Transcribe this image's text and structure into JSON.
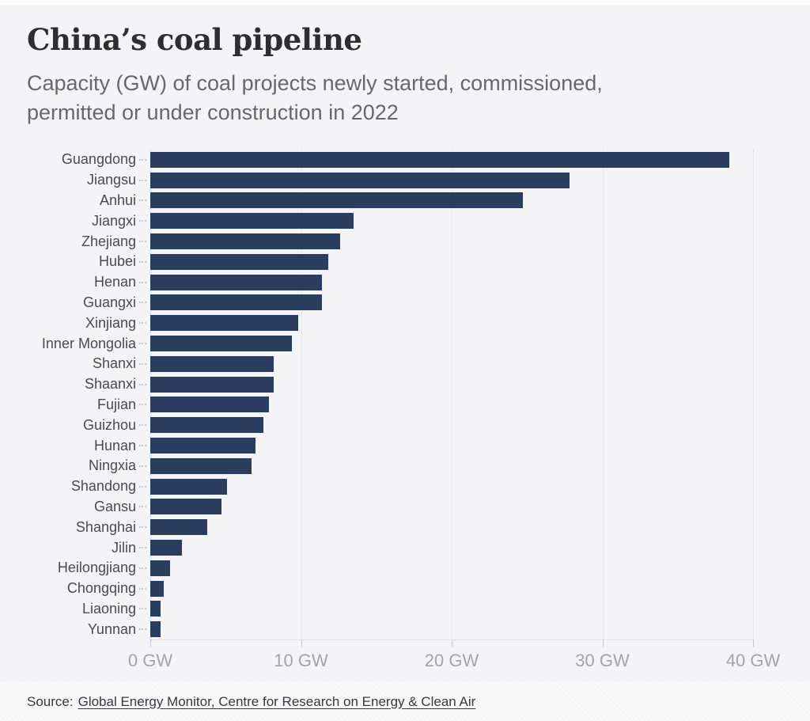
{
  "header": {
    "title": "China’s coal pipeline",
    "subtitle_lines": [
      "Capacity (GW) of coal projects newly started, commissioned,",
      "permitted or under construction in 2022"
    ]
  },
  "chart_data": {
    "type": "bar",
    "orientation": "horizontal",
    "title": "China’s coal pipeline",
    "subtitle": "Capacity (GW) of coal projects newly started, commissioned, permitted or under construction in 2022",
    "unit": "GW",
    "categories": [
      "Guangdong",
      "Jiangsu",
      "Anhui",
      "Jiangxi",
      "Zhejiang",
      "Hubei",
      "Henan",
      "Guangxi",
      "Xinjiang",
      "Inner Mongolia",
      "Shanxi",
      "Shaanxi",
      "Fujian",
      "Guizhou",
      "Hunan",
      "Ningxia",
      "Shandong",
      "Gansu",
      "Shanghai",
      "Jilin",
      "Heilongjiang",
      "Chongqing",
      "Liaoning",
      "Yunnan"
    ],
    "values": [
      38.4,
      27.8,
      24.7,
      13.5,
      12.6,
      11.8,
      11.4,
      11.4,
      9.8,
      9.4,
      8.2,
      8.2,
      7.9,
      7.5,
      7.0,
      6.7,
      5.1,
      4.7,
      3.8,
      2.1,
      1.3,
      0.9,
      0.7,
      0.7
    ],
    "xlim": [
      0,
      40
    ],
    "x_tick_values": [
      0,
      10,
      20,
      30,
      40
    ],
    "x_tick_labels": [
      "0 GW",
      "10 GW",
      "20 GW",
      "30 GW",
      "40 GW"
    ],
    "bar_color": "#293d5e",
    "grid": true,
    "legend": false
  },
  "footer": {
    "source_prefix": "Source:",
    "source_link": "Global Energy Monitor, Centre for Research on Energy & Clean Air"
  }
}
